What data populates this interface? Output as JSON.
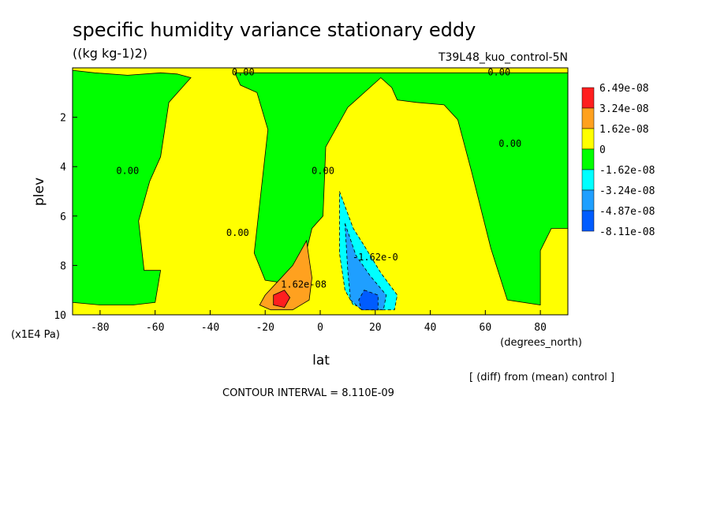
{
  "chart_data": {
    "type": "heatmap",
    "title": "specific humidity variance stationary eddy",
    "units": "((kg kg-1)2)",
    "run_label": "T39L48_kuo_control-5N",
    "xlabel": "lat",
    "x_units": "(degrees_north)",
    "ylabel": "plev",
    "y_units": "(x1E4 Pa)",
    "xlim": [
      -90,
      90
    ],
    "ylim": [
      10,
      0
    ],
    "x_ticks": [
      -80,
      -60,
      -40,
      -20,
      0,
      20,
      40,
      60,
      80
    ],
    "y_ticks": [
      2,
      4,
      6,
      8,
      10
    ],
    "legend": {
      "placement": "right",
      "levels": [
        "6.49e-08",
        "3.24e-08",
        "1.62e-08",
        "0",
        "-1.62e-08",
        "-3.24e-08",
        "-4.87e-08",
        "-8.11e-08"
      ],
      "colors": [
        "#ff1f1f",
        "#ffa11f",
        "#ffff00",
        "#00ff00",
        "#00ffff",
        "#1f9fff",
        "#005cff"
      ]
    },
    "contour_labels": [
      {
        "text": "0.00",
        "lat": -28,
        "plev": 0.3
      },
      {
        "text": "0.00",
        "lat": 65,
        "plev": 0.3
      },
      {
        "text": "0.00",
        "lat": -70,
        "plev": 4.3
      },
      {
        "text": "0.00",
        "lat": 1,
        "plev": 4.3
      },
      {
        "text": "0.00",
        "lat": -30,
        "plev": 6.8
      },
      {
        "text": "0.00",
        "lat": 69,
        "plev": 3.2
      },
      {
        "text": "1.62e-08",
        "lat": -6,
        "plev": 8.9
      },
      {
        "text": "-1.62e-0",
        "lat": 20,
        "plev": 7.8
      }
    ],
    "fields": [
      {
        "level": "0",
        "color": "#00ff00",
        "description": "near-zero negative region, large area",
        "points": [
          [
            -90,
            0.1
          ],
          [
            -82,
            0.2
          ],
          [
            -70,
            0.3
          ],
          [
            -58,
            0.2
          ],
          [
            -52,
            0.25
          ],
          [
            -47,
            0.4
          ],
          [
            -55,
            1.4
          ],
          [
            -58,
            3.6
          ],
          [
            -62,
            4.6
          ],
          [
            -66,
            6.2
          ],
          [
            -64,
            8.2
          ],
          [
            -58,
            8.2
          ],
          [
            -60,
            9.5
          ],
          [
            -68,
            9.6
          ],
          [
            -80,
            9.6
          ],
          [
            -90,
            9.5
          ]
        ]
      },
      {
        "level": "0",
        "color": "#00ff00",
        "description": "central green band",
        "points": [
          [
            -31,
            0.2
          ],
          [
            -10,
            0.2
          ],
          [
            2,
            0.2
          ],
          [
            10,
            0.2
          ],
          [
            27,
            0.2
          ],
          [
            56,
            0.2
          ],
          [
            75,
            0.2
          ],
          [
            88,
            0.2
          ],
          [
            90,
            0.2
          ],
          [
            90,
            6.5
          ],
          [
            84,
            6.5
          ],
          [
            80,
            7.4
          ],
          [
            80,
            9.6
          ],
          [
            68,
            9.4
          ],
          [
            62,
            7.3
          ],
          [
            55,
            4.2
          ],
          [
            50,
            2.1
          ],
          [
            45,
            1.5
          ],
          [
            35,
            1.4
          ],
          [
            28,
            1.3
          ],
          [
            26,
            0.8
          ],
          [
            22,
            0.4
          ],
          [
            10,
            1.6
          ],
          [
            2,
            3.2
          ],
          [
            1,
            6.0
          ],
          [
            -3,
            6.5
          ],
          [
            -8,
            8.8
          ],
          [
            -20,
            8.6
          ],
          [
            -24,
            7.5
          ],
          [
            -19,
            2.5
          ],
          [
            -23,
            1.0
          ],
          [
            -29,
            0.7
          ]
        ]
      },
      {
        "level": "-1.62e-08",
        "color": "#00ffff",
        "points": [
          [
            7,
            5.0
          ],
          [
            12,
            6.5
          ],
          [
            16,
            7.2
          ],
          [
            22,
            8.3
          ],
          [
            28,
            9.2
          ],
          [
            27,
            9.8
          ],
          [
            18,
            9.8
          ],
          [
            12,
            9.6
          ],
          [
            9,
            9.0
          ],
          [
            7,
            7.5
          ],
          [
            7,
            6.0
          ]
        ]
      },
      {
        "level": "-3.24e-08",
        "color": "#1f9fff",
        "points": [
          [
            9,
            6.3
          ],
          [
            13,
            7.6
          ],
          [
            18,
            8.4
          ],
          [
            24,
            9.2
          ],
          [
            23,
            9.8
          ],
          [
            15,
            9.8
          ],
          [
            11,
            9.4
          ],
          [
            10,
            8.2
          ]
        ]
      },
      {
        "level": "-4.87e-08",
        "color": "#005cff",
        "points": [
          [
            16,
            9.0
          ],
          [
            21,
            9.2
          ],
          [
            21,
            9.8
          ],
          [
            15,
            9.8
          ],
          [
            14,
            9.4
          ]
        ]
      },
      {
        "level": "1.62e-08",
        "color": "#ffa11f",
        "points": [
          [
            -20,
            9.2
          ],
          [
            -15,
            8.6
          ],
          [
            -10,
            8.0
          ],
          [
            -5,
            7.0
          ],
          [
            -3,
            8.5
          ],
          [
            -4,
            9.4
          ],
          [
            -10,
            9.8
          ],
          [
            -18,
            9.8
          ],
          [
            -22,
            9.6
          ]
        ]
      },
      {
        "level": "3.24e-08",
        "color": "#ff1f1f",
        "points": [
          [
            -17,
            9.2
          ],
          [
            -13,
            9.0
          ],
          [
            -11,
            9.3
          ],
          [
            -13,
            9.7
          ],
          [
            -17,
            9.6
          ]
        ]
      }
    ],
    "footer": "CONTOUR INTERVAL = 8.110E-09",
    "note": "[ (diff) from (mean) control ]"
  }
}
